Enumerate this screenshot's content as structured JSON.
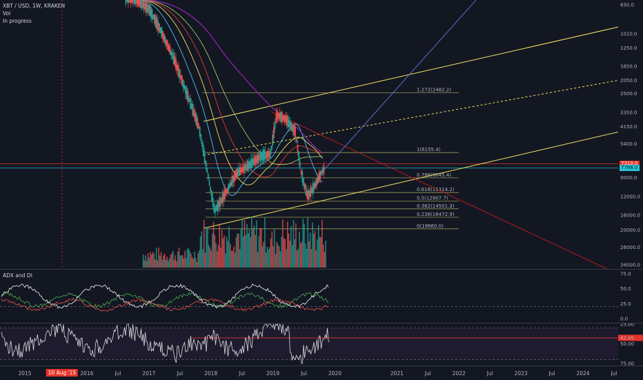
{
  "legend": {
    "symbol": "XBT / USD, 1W, KRAKEN",
    "vol": "Vol",
    "status": "In progress"
  },
  "chart_data": [
    {
      "type": "candlestick",
      "title": "XBT / USD, 1W, KRAKEN",
      "y_scale": "log",
      "y_axis_inverted": true,
      "y_ticks": [
        "650.0",
        "1010.0",
        "1250.0",
        "1650.0",
        "2050.0",
        "2500.0",
        "3350.0",
        "4150.0",
        "5400.0",
        "9000.0",
        "12000.0",
        "16000.0",
        "20000.0",
        "26000.0",
        "34000.0"
      ],
      "y_values": [
        650,
        1010,
        1250,
        1650,
        2050,
        2500,
        3350,
        4150,
        5400,
        9000,
        12000,
        16000,
        20000,
        26000,
        34000
      ],
      "price_labels": [
        {
          "text": "7310.0",
          "value": 7310,
          "color": "#e6332a"
        },
        {
          "text": "7788.0",
          "value": 7788,
          "color": "#26c6da"
        }
      ],
      "fib_levels": [
        {
          "label": "1.272(2482.2)",
          "value": 2482.2
        },
        {
          "label": "1(6155.4)",
          "value": 6155.4
        },
        {
          "label": "0.786(9045.4)",
          "value": 9045.4
        },
        {
          "label": "0.618(11314.2)",
          "value": 11314.2
        },
        {
          "label": "0.5(12907.7)",
          "value": 12907.7
        },
        {
          "label": "0.382(14501.3)",
          "value": 14501.3
        },
        {
          "label": "0.236(16472.9)",
          "value": 16472.9
        },
        {
          "label": "0(19660.0)",
          "value": 19660.0
        }
      ],
      "series": [
        {
          "name": "price",
          "t": [
            2016.6,
            2016.8,
            2017.0,
            2017.2,
            2017.4,
            2017.6,
            2017.8,
            2017.95,
            2018.05,
            2018.2,
            2018.4,
            2018.6,
            2018.8,
            2018.95,
            2019.05,
            2019.2,
            2019.35,
            2019.45,
            2019.55,
            2019.65,
            2019.8
          ],
          "v": [
            600,
            610,
            700,
            1000,
            1500,
            2500,
            4200,
            9000,
            15000,
            12000,
            8500,
            7500,
            6500,
            6300,
            3500,
            3700,
            4500,
            8500,
            12000,
            10500,
            8000
          ]
        }
      ]
    },
    {
      "type": "line",
      "title": "ADX and DI",
      "y_ticks": [
        "75.0",
        "50.0",
        "25.0",
        "0.0"
      ],
      "y_values": [
        75,
        50,
        25,
        0
      ]
    },
    {
      "type": "line",
      "y_ticks": [
        "25.00",
        "42.45",
        "50.00",
        "75.00"
      ],
      "y_values": [
        25,
        42.45,
        50,
        75
      ],
      "current_label": "42.45"
    }
  ],
  "time_axis": {
    "labels": [
      "2015",
      "2016",
      "Jul",
      "2017",
      "Jul",
      "2018",
      "Jul",
      "2019",
      "Jul",
      "2020",
      "2021",
      "Jul",
      "2022",
      "Jul",
      "2023",
      "Jul",
      "2024",
      "Jul"
    ],
    "years": [
      2015.0,
      2016.0,
      2016.5,
      2017.0,
      2017.5,
      2018.0,
      2018.5,
      2019.0,
      2019.5,
      2020.0,
      2021.0,
      2021.5,
      2022.0,
      2022.5,
      2023.0,
      2023.5,
      2024.0,
      2024.5
    ],
    "highlight": "10 Aug '15",
    "highlight_year": 2015.6
  },
  "panels": {
    "adx_label": "ADX and DI"
  },
  "colors": {
    "up": "#26a69a",
    "down": "#ef5350",
    "channel": "#f7e463",
    "fib": "#9c9a5a",
    "ma_purple": "#8e24aa",
    "trend_blue": "#5b6ed0"
  }
}
